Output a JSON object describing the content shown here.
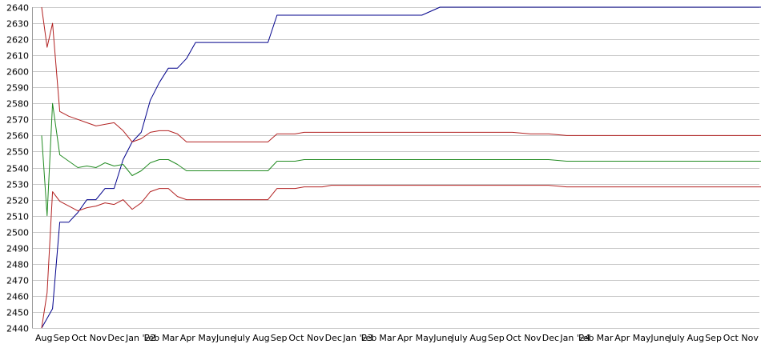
{
  "chart_data": {
    "type": "line",
    "title": "",
    "xlabel": "",
    "ylabel": "",
    "ylim": [
      2440,
      2640
    ],
    "y_ticks": [
      2440,
      2450,
      2460,
      2470,
      2480,
      2490,
      2500,
      2510,
      2520,
      2530,
      2540,
      2550,
      2560,
      2570,
      2580,
      2590,
      2600,
      2610,
      2620,
      2630,
      2640
    ],
    "x_ticks": [
      "Aug",
      "Sep",
      "Oct",
      "Nov",
      "Dec",
      "Jan '22",
      "Feb",
      "Mar",
      "Apr",
      "May",
      "June",
      "July",
      "Aug",
      "Sep",
      "Oct",
      "Nov",
      "Dec",
      "Jan '23",
      "Feb",
      "Mar",
      "Apr",
      "May",
      "June",
      "July",
      "Aug",
      "Sep",
      "Oct",
      "Nov",
      "Dec",
      "Jan '24",
      "Feb",
      "Mar",
      "Apr",
      "May",
      "June",
      "July",
      "Aug",
      "Sep",
      "Oct",
      "Nov"
    ],
    "grid": true,
    "legend": "none",
    "x": [
      0,
      0.3,
      0.6,
      1,
      1.5,
      2,
      2.5,
      3,
      3.5,
      4,
      4.5,
      5,
      5.5,
      6,
      6.5,
      7,
      7.5,
      8,
      8.5,
      9,
      9.5,
      10,
      10.5,
      11,
      11.5,
      12,
      12.5,
      13,
      13.5,
      14,
      14.5,
      15,
      15.5,
      16,
      17,
      18,
      19,
      20,
      21,
      22,
      23,
      24,
      25,
      26,
      27,
      28,
      29,
      30,
      31,
      32,
      33,
      34,
      35,
      36,
      37,
      38,
      39,
      40
    ],
    "series": [
      {
        "color": "#00008b",
        "values": [
          2440,
          2446,
          2452,
          2506,
          2506,
          2512,
          2520,
          2520,
          2527,
          2527,
          2545,
          2556,
          2562,
          2582,
          2593,
          2602,
          2602,
          2608,
          2618,
          2618,
          2618,
          2618,
          2618,
          2618,
          2618,
          2618,
          2618,
          2635,
          2635,
          2635,
          2635,
          2635,
          2635,
          2635,
          2635,
          2635,
          2635,
          2635,
          2635,
          2640,
          2640,
          2640,
          2640,
          2640,
          2640,
          2640,
          2640,
          2640,
          2640,
          2640,
          2640,
          2640,
          2640,
          2640,
          2640,
          2640,
          2640,
          2640
        ]
      },
      {
        "color": "#b22222",
        "values": [
          2640,
          2615,
          2630,
          2575,
          2572,
          2570,
          2568,
          2566,
          2567,
          2568,
          2563,
          2556,
          2558,
          2562,
          2563,
          2563,
          2561,
          2556,
          2556,
          2556,
          2556,
          2556,
          2556,
          2556,
          2556,
          2556,
          2556,
          2561,
          2561,
          2561,
          2562,
          2562,
          2562,
          2562,
          2562,
          2562,
          2562,
          2562,
          2562,
          2562,
          2562,
          2562,
          2562,
          2562,
          2561,
          2561,
          2560,
          2560,
          2560,
          2560,
          2560,
          2560,
          2560,
          2560,
          2560,
          2560,
          2560,
          2560
        ]
      },
      {
        "color": "#228b22",
        "values": [
          2560,
          2510,
          2580,
          2548,
          2544,
          2540,
          2541,
          2540,
          2543,
          2541,
          2542,
          2535,
          2538,
          2543,
          2545,
          2545,
          2542,
          2538,
          2538,
          2538,
          2538,
          2538,
          2538,
          2538,
          2538,
          2538,
          2538,
          2544,
          2544,
          2544,
          2545,
          2545,
          2545,
          2545,
          2545,
          2545,
          2545,
          2545,
          2545,
          2545,
          2545,
          2545,
          2545,
          2545,
          2545,
          2545,
          2544,
          2544,
          2544,
          2544,
          2544,
          2544,
          2544,
          2544,
          2544,
          2544,
          2544,
          2544
        ]
      },
      {
        "color": "#b22222",
        "values": [
          2440,
          2462,
          2525,
          2519,
          2516,
          2513,
          2515,
          2516,
          2518,
          2517,
          2520,
          2514,
          2518,
          2525,
          2527,
          2527,
          2522,
          2520,
          2520,
          2520,
          2520,
          2520,
          2520,
          2520,
          2520,
          2520,
          2520,
          2527,
          2527,
          2527,
          2528,
          2528,
          2528,
          2529,
          2529,
          2529,
          2529,
          2529,
          2529,
          2529,
          2529,
          2529,
          2529,
          2529,
          2529,
          2529,
          2528,
          2528,
          2528,
          2528,
          2528,
          2528,
          2528,
          2528,
          2528,
          2528,
          2528,
          2528
        ]
      }
    ]
  }
}
